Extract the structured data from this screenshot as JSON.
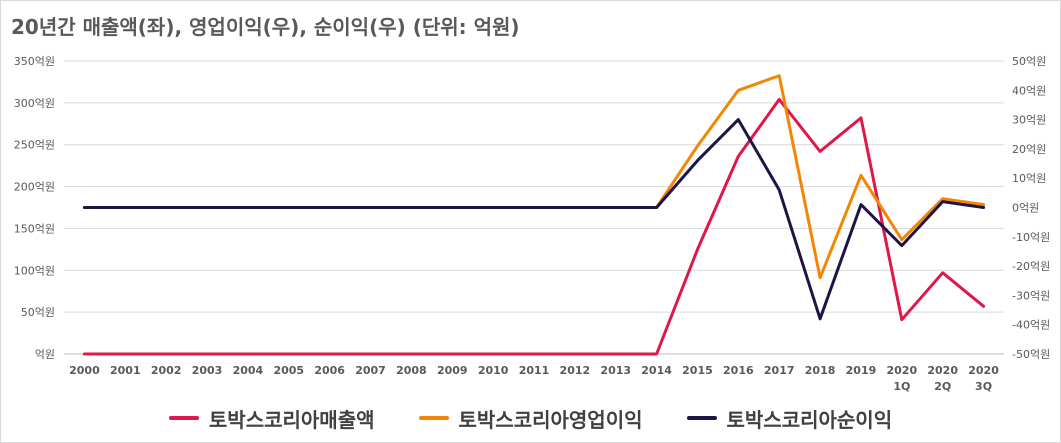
{
  "chart_data": {
    "type": "line",
    "title": "20년간 매출액(좌), 영업이익(우), 순이익(우) (단위: 억원)",
    "categories": [
      "2000",
      "2001",
      "2002",
      "2003",
      "2004",
      "2005",
      "2006",
      "2007",
      "2008",
      "2009",
      "2010",
      "2011",
      "2012",
      "2013",
      "2014",
      "2015",
      "2016",
      "2017",
      "2018",
      "2019",
      "2020 1Q",
      "2020 2Q",
      "2020 3Q"
    ],
    "category_lines": [
      [
        "2000"
      ],
      [
        "2001"
      ],
      [
        "2002"
      ],
      [
        "2003"
      ],
      [
        "2004"
      ],
      [
        "2005"
      ],
      [
        "2006"
      ],
      [
        "2007"
      ],
      [
        "2008"
      ],
      [
        "2009"
      ],
      [
        "2010"
      ],
      [
        "2011"
      ],
      [
        "2012"
      ],
      [
        "2013"
      ],
      [
        "2014"
      ],
      [
        "2015"
      ],
      [
        "2016"
      ],
      [
        "2017"
      ],
      [
        "2018"
      ],
      [
        "2019"
      ],
      [
        "2020",
        "1Q"
      ],
      [
        "2020",
        "2Q"
      ],
      [
        "2020",
        "3Q"
      ]
    ],
    "y_left": {
      "ylim": [
        0,
        350
      ],
      "ticks": [
        0,
        50,
        100,
        150,
        200,
        250,
        300,
        350
      ],
      "tick_labels": [
        "억원",
        "50억원",
        "100억원",
        "150억원",
        "200억원",
        "250억원",
        "300억원",
        "350억원"
      ]
    },
    "y_right": {
      "ylim": [
        -50,
        50
      ],
      "ticks": [
        -50,
        -40,
        -30,
        -20,
        -10,
        0,
        10,
        20,
        30,
        40,
        50
      ],
      "tick_labels": [
        "-50억원",
        "-40억원",
        "-30억원",
        "-20억원",
        "-10억원",
        "0억원",
        "10억원",
        "20억원",
        "30억원",
        "40억원",
        "50억원"
      ]
    },
    "series": [
      {
        "name": "토박스코리아매출액",
        "axis": "left",
        "color": "#e0174a",
        "values": [
          0,
          0,
          0,
          0,
          0,
          0,
          0,
          0,
          0,
          0,
          0,
          0,
          0,
          0,
          0,
          125,
          236,
          304,
          242,
          282,
          41,
          97,
          57
        ]
      },
      {
        "name": "토박스코리아영업이익",
        "axis": "right",
        "color": "#f28705",
        "values": [
          0,
          0,
          0,
          0,
          0,
          0,
          0,
          0,
          0,
          0,
          0,
          0,
          0,
          0,
          0,
          21,
          40,
          45,
          -24,
          11,
          -11,
          3,
          1
        ]
      },
      {
        "name": "토박스코리아순이익",
        "axis": "right",
        "color": "#1f1446",
        "values": [
          0,
          0,
          0,
          0,
          0,
          0,
          0,
          0,
          0,
          0,
          0,
          0,
          0,
          0,
          0,
          16,
          30,
          6,
          -38,
          1,
          -13,
          2,
          0
        ]
      }
    ],
    "grid": "horizontal",
    "legend_position": "bottom"
  }
}
